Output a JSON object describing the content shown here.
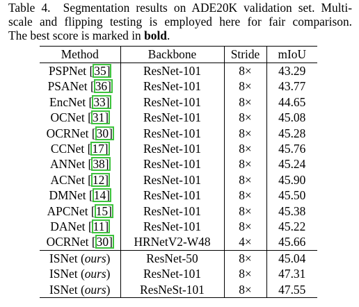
{
  "caption": {
    "label": "Table 4.",
    "line1_rest": "Segmentation results on ADE20K validation set. Multi-",
    "line2": "scale and flipping testing is employed here for fair comparison.",
    "line3_pre": "The best score is marked in ",
    "line3_bold": "bold",
    "line3_post": "."
  },
  "table": {
    "headers": [
      "Method",
      "Backbone",
      "Stride",
      "mIoU"
    ],
    "rows": [
      {
        "method": "PSPNet",
        "cite": "35",
        "backbone": "ResNet-101",
        "stride": "8×",
        "miou": "43.29"
      },
      {
        "method": "PSANet",
        "cite": "36",
        "backbone": "ResNet-101",
        "stride": "8×",
        "miou": "43.77"
      },
      {
        "method": "EncNet",
        "cite": "33",
        "backbone": "ResNet-101",
        "stride": "8×",
        "miou": "44.65"
      },
      {
        "method": "OCNet",
        "cite": "31",
        "backbone": "ResNet-101",
        "stride": "8×",
        "miou": "45.08"
      },
      {
        "method": "OCRNet",
        "cite": "30",
        "backbone": "ResNet-101",
        "stride": "8×",
        "miou": "45.28"
      },
      {
        "method": "CCNet",
        "cite": "17",
        "backbone": "ResNet-101",
        "stride": "8×",
        "miou": "45.76"
      },
      {
        "method": "ANNet",
        "cite": "38",
        "backbone": "ResNet-101",
        "stride": "8×",
        "miou": "45.24"
      },
      {
        "method": "ACNet",
        "cite": "12",
        "backbone": "ResNet-101",
        "stride": "8×",
        "miou": "45.90"
      },
      {
        "method": "DMNet",
        "cite": "14",
        "backbone": "ResNet-101",
        "stride": "8×",
        "miou": "45.50"
      },
      {
        "method": "APCNet",
        "cite": "15",
        "backbone": "ResNet-101",
        "stride": "8×",
        "miou": "45.38"
      },
      {
        "method": "DANet",
        "cite": "11",
        "backbone": "ResNet-101",
        "stride": "8×",
        "miou": "45.22"
      },
      {
        "method": "OCRNet",
        "cite": "30",
        "backbone": "HRNetV2-W48",
        "stride": "4×",
        "miou": "45.66"
      }
    ],
    "ours": [
      {
        "method": "ISNet",
        "tag": "ours",
        "backbone": "ResNet-50",
        "stride": "8×",
        "miou": "45.04",
        "best": false
      },
      {
        "method": "ISNet",
        "tag": "ours",
        "backbone": "ResNet-101",
        "stride": "8×",
        "miou": "47.31",
        "best": false
      },
      {
        "method": "ISNet",
        "tag": "ours",
        "backbone": "ResNeSt-101",
        "stride": "8×",
        "miou": "47.55",
        "best": true
      }
    ]
  }
}
